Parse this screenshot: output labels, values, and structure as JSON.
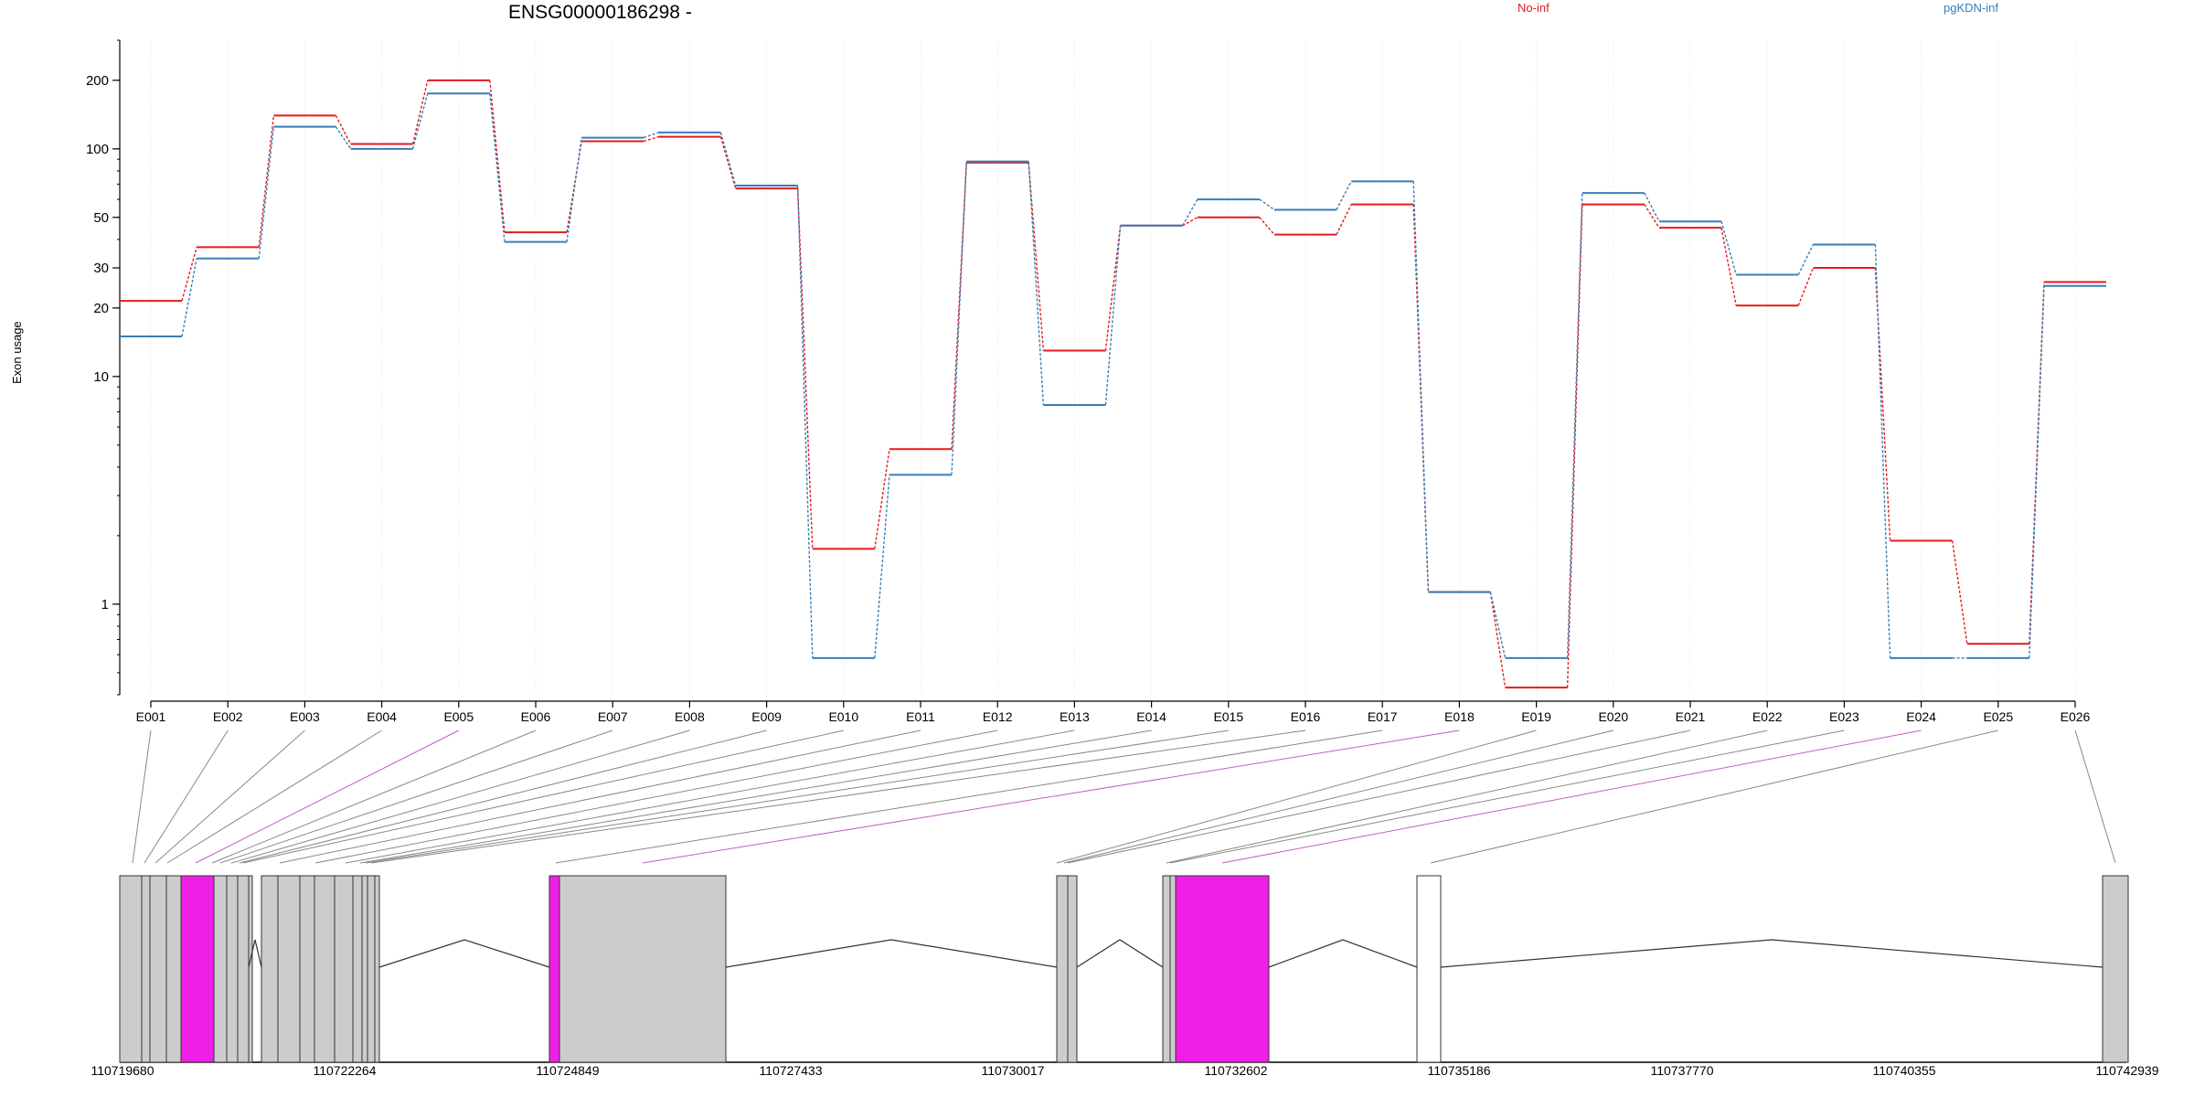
{
  "title": "ENSG00000186298 -",
  "legend": [
    {
      "name": "No-inf",
      "color": "#e41a1c"
    },
    {
      "name": "pgKDN-inf",
      "color": "#377eb8"
    }
  ],
  "ylabel": "Exon usage",
  "chart_data": {
    "type": "line",
    "title": "ENSG00000186298 -",
    "ylabel": "Exon usage",
    "y_scale": "log",
    "ylim": [
      0.4,
      300
    ],
    "y_ticks": [
      1,
      10,
      20,
      30,
      50,
      100,
      200
    ],
    "x": [
      "E001",
      "E002",
      "E003",
      "E004",
      "E005",
      "E006",
      "E007",
      "E008",
      "E009",
      "E010",
      "E011",
      "E012",
      "E013",
      "E014",
      "E015",
      "E016",
      "E017",
      "E018",
      "E019",
      "E020",
      "E021",
      "E022",
      "E023",
      "E024",
      "E025",
      "E026"
    ],
    "series": [
      {
        "name": "No-inf",
        "color": "#e41a1c",
        "values": [
          21.5,
          37,
          140,
          105,
          200,
          43,
          108,
          113,
          67,
          1.75,
          4.8,
          87,
          13,
          46,
          50,
          42,
          57,
          1.13,
          0.43,
          57,
          45,
          20.5,
          30,
          1.9,
          0.67,
          26
        ]
      },
      {
        "name": "pgKDN-inf",
        "color": "#377eb8",
        "values": [
          15,
          33,
          125,
          100,
          175,
          39,
          112,
          118,
          69,
          0.58,
          3.7,
          88,
          7.5,
          46,
          60,
          54,
          72,
          1.13,
          0.58,
          64,
          48,
          28,
          38,
          0.58,
          0.58,
          25
        ]
      }
    ],
    "grid": false,
    "legend_position": "top"
  },
  "gene_model": {
    "coordinate_labels": [
      "110719680",
      "110722264",
      "110724849",
      "110727433",
      "110730017",
      "110732602",
      "110735186",
      "110737770",
      "110740355",
      "110742939"
    ]
  },
  "colors": {
    "exon_fill": "#cccccc",
    "highlight_fill": "#f01fe8",
    "connector": "#888888",
    "highlight_connector": "#c060c0"
  }
}
